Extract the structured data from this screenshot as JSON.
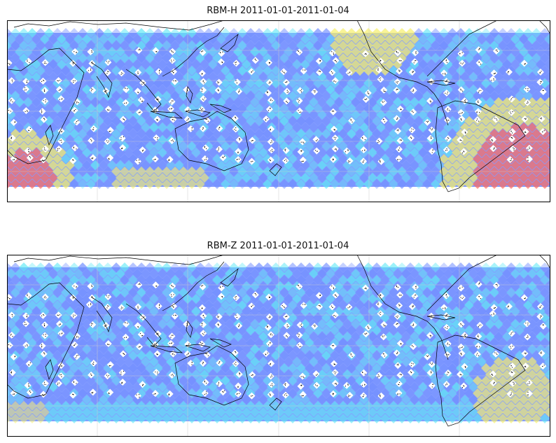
{
  "panels": [
    {
      "title": "RBM-H 2011-01-01-2011-01-04",
      "variant": "H",
      "colors": {
        "background": "#6f8cff",
        "cyan": "#5ee8f5",
        "yellow": "#f7f06a",
        "red": "#ff6a5c",
        "gridline": "#cccccc",
        "coast": "#000000"
      }
    },
    {
      "title": "RBM-Z 2011-01-01-2011-01-04",
      "variant": "Z",
      "colors": {
        "background": "#6f8cff",
        "cyan": "#5ee8f5",
        "yellow": "#f7f06a",
        "red": "#ff6a5c",
        "gridline": "#cccccc",
        "coast": "#000000"
      }
    }
  ]
}
